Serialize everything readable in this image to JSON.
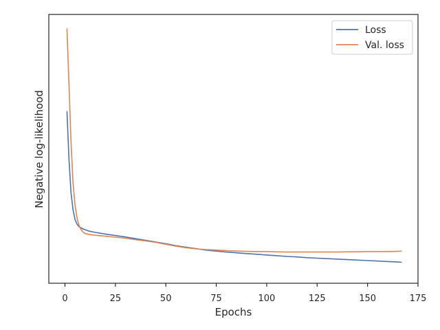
{
  "chart_data": {
    "type": "line",
    "xlabel": "Epochs",
    "ylabel": "Negative log-likelihood",
    "xlim": [
      -8,
      175
    ],
    "ylim": [
      0.0,
      1.0
    ],
    "xticks": [
      0,
      25,
      50,
      75,
      100,
      125,
      150,
      175
    ],
    "yticks_shown": false,
    "grid": false,
    "legend_position": "upper right",
    "series": [
      {
        "name": "Loss",
        "color": "#4c72b0",
        "points": [
          [
            1,
            0.645
          ],
          [
            2,
            0.45
          ],
          [
            3,
            0.31
          ],
          [
            4,
            0.24
          ],
          [
            5,
            0.2
          ],
          [
            6,
            0.18
          ],
          [
            7,
            0.17
          ],
          [
            8,
            0.165
          ],
          [
            10,
            0.158
          ],
          [
            12,
            0.152
          ],
          [
            15,
            0.147
          ],
          [
            20,
            0.14
          ],
          [
            25,
            0.134
          ],
          [
            30,
            0.128
          ],
          [
            35,
            0.121
          ],
          [
            40,
            0.114
          ],
          [
            45,
            0.107
          ],
          [
            50,
            0.1
          ],
          [
            55,
            0.092
          ],
          [
            60,
            0.086
          ],
          [
            65,
            0.08
          ],
          [
            70,
            0.074
          ],
          [
            75,
            0.07
          ],
          [
            80,
            0.066
          ],
          [
            85,
            0.063
          ],
          [
            90,
            0.06
          ],
          [
            95,
            0.057
          ],
          [
            100,
            0.054
          ],
          [
            105,
            0.051
          ],
          [
            110,
            0.048
          ],
          [
            115,
            0.046
          ],
          [
            120,
            0.043
          ],
          [
            125,
            0.041
          ],
          [
            130,
            0.039
          ],
          [
            135,
            0.037
          ],
          [
            140,
            0.035
          ],
          [
            145,
            0.033
          ],
          [
            150,
            0.031
          ],
          [
            155,
            0.029
          ],
          [
            160,
            0.027
          ],
          [
            165,
            0.025
          ],
          [
            167,
            0.024
          ]
        ]
      },
      {
        "name": "Val. loss",
        "color": "#dd8452",
        "points": [
          [
            1,
            0.985
          ],
          [
            2,
            0.76
          ],
          [
            3,
            0.52
          ],
          [
            4,
            0.35
          ],
          [
            5,
            0.26
          ],
          [
            6,
            0.205
          ],
          [
            7,
            0.175
          ],
          [
            8,
            0.158
          ],
          [
            9,
            0.148
          ],
          [
            10,
            0.142
          ],
          [
            12,
            0.138
          ],
          [
            15,
            0.135
          ],
          [
            20,
            0.131
          ],
          [
            25,
            0.127
          ],
          [
            30,
            0.123
          ],
          [
            35,
            0.117
          ],
          [
            40,
            0.112
          ],
          [
            45,
            0.106
          ],
          [
            50,
            0.098
          ],
          [
            55,
            0.09
          ],
          [
            60,
            0.084
          ],
          [
            65,
            0.079
          ],
          [
            70,
            0.076
          ],
          [
            75,
            0.074
          ],
          [
            80,
            0.072
          ],
          [
            85,
            0.07
          ],
          [
            90,
            0.069
          ],
          [
            95,
            0.068
          ],
          [
            100,
            0.068
          ],
          [
            105,
            0.067
          ],
          [
            110,
            0.066
          ],
          [
            115,
            0.066
          ],
          [
            120,
            0.066
          ],
          [
            125,
            0.066
          ],
          [
            130,
            0.066
          ],
          [
            135,
            0.066
          ],
          [
            140,
            0.067
          ],
          [
            145,
            0.067
          ],
          [
            150,
            0.068
          ],
          [
            155,
            0.068
          ],
          [
            160,
            0.068
          ],
          [
            165,
            0.069
          ],
          [
            167,
            0.07
          ]
        ]
      }
    ]
  }
}
